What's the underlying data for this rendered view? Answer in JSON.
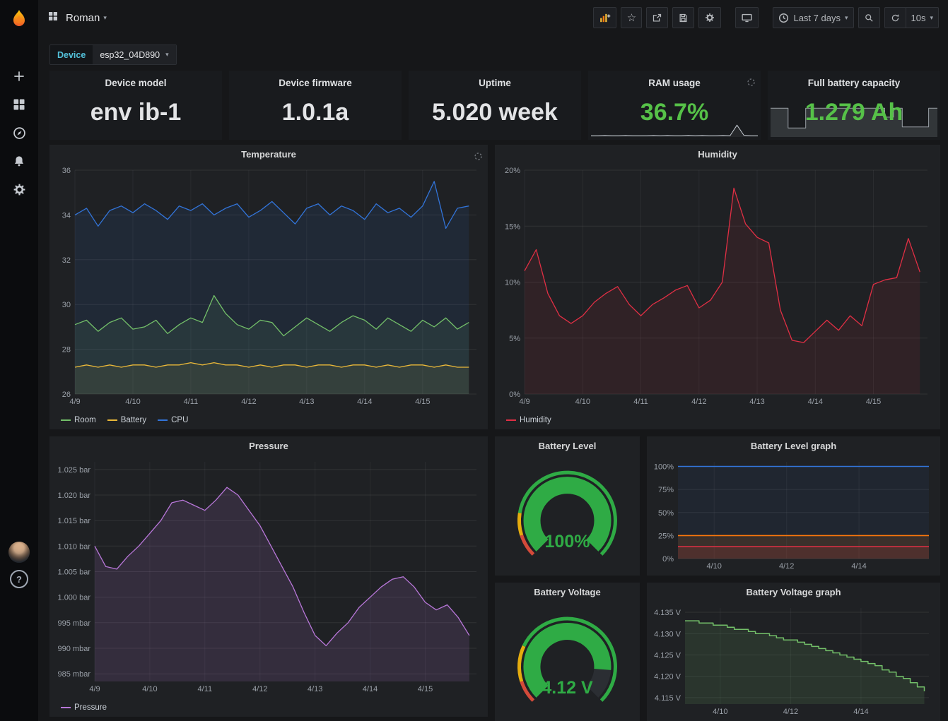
{
  "icons": {
    "caret_down": "▾",
    "star": "☆",
    "help": "?"
  },
  "navbar": {
    "dashboard_title": "Roman",
    "time_range_label": "Last 7 days",
    "refresh_label": "10s"
  },
  "device_bar": {
    "label": "Device",
    "value": "esp32_04D890"
  },
  "stats": [
    {
      "title": "Device model",
      "value": "env ib-1",
      "color": "#e3e4e6"
    },
    {
      "title": "Device firmware",
      "value": "1.0.1a",
      "color": "#e3e4e6"
    },
    {
      "title": "Uptime",
      "value": "5.020 week",
      "color": "#e3e4e6"
    },
    {
      "title": "RAM usage",
      "value": "36.7%",
      "color": "#56c148"
    },
    {
      "title": "Full battery capacity",
      "value": "1.279 Ah",
      "color": "#56c148"
    }
  ],
  "gauges": [
    {
      "id": "battery_level",
      "title": "Battery Level",
      "display": "100%",
      "percent": 100,
      "color": "#2fab45",
      "thresholds": [
        {
          "from": 0,
          "to": 0.1,
          "color": "#d44a3a"
        },
        {
          "from": 0.1,
          "to": 0.2,
          "color": "#e5ac0e"
        },
        {
          "from": 0.2,
          "to": 1,
          "color": "#2fab45"
        }
      ]
    },
    {
      "id": "battery_voltage",
      "title": "Battery Voltage",
      "display": "4.12 V",
      "percent": 85,
      "color": "#2fab45",
      "thresholds": [
        {
          "from": 0,
          "to": 0.1,
          "color": "#d44a3a"
        },
        {
          "from": 0.1,
          "to": 0.26,
          "color": "#e5ac0e"
        },
        {
          "from": 0.26,
          "to": 1,
          "color": "#2fab45"
        }
      ]
    }
  ],
  "chart_data": [
    {
      "id": "temperature",
      "type": "line",
      "title": "Temperature",
      "legend": true,
      "xmin": 9,
      "xmax": 15.93,
      "ymin": 26,
      "ymax": 36,
      "x": [
        9,
        9.2,
        9.4,
        9.6,
        9.8,
        10,
        10.2,
        10.4,
        10.6,
        10.8,
        11,
        11.2,
        11.4,
        11.6,
        11.8,
        12,
        12.2,
        12.4,
        12.6,
        12.8,
        13,
        13.2,
        13.4,
        13.6,
        13.8,
        14,
        14.2,
        14.4,
        14.6,
        14.8,
        15,
        15.2,
        15.4,
        15.6,
        15.8
      ],
      "xticks": [
        {
          "v": 9,
          "label": "4/9"
        },
        {
          "v": 10,
          "label": "4/10"
        },
        {
          "v": 11,
          "label": "4/11"
        },
        {
          "v": 12,
          "label": "4/12"
        },
        {
          "v": 13,
          "label": "4/13"
        },
        {
          "v": 14,
          "label": "4/14"
        },
        {
          "v": 15,
          "label": "4/15"
        }
      ],
      "yticks": [
        {
          "v": 26,
          "label": "26"
        },
        {
          "v": 28,
          "label": "28"
        },
        {
          "v": 30,
          "label": "30"
        },
        {
          "v": 32,
          "label": "32"
        },
        {
          "v": 34,
          "label": "34"
        },
        {
          "v": 36,
          "label": "36"
        }
      ],
      "series": [
        {
          "name": "Room",
          "color": "#73bf69",
          "fill": "rgba(115,191,105,0.10)",
          "values": [
            29.1,
            29.3,
            28.8,
            29.2,
            29.4,
            28.9,
            29.0,
            29.3,
            28.7,
            29.1,
            29.4,
            29.2,
            30.4,
            29.6,
            29.1,
            28.9,
            29.3,
            29.2,
            28.6,
            29.0,
            29.4,
            29.1,
            28.8,
            29.2,
            29.5,
            29.3,
            28.9,
            29.4,
            29.1,
            28.8,
            29.3,
            29.0,
            29.4,
            28.9,
            29.2
          ]
        },
        {
          "name": "Battery",
          "color": "#eab839",
          "fill": "rgba(234,184,57,0.08)",
          "values": [
            27.2,
            27.3,
            27.2,
            27.3,
            27.2,
            27.3,
            27.3,
            27.2,
            27.3,
            27.3,
            27.4,
            27.3,
            27.4,
            27.3,
            27.3,
            27.2,
            27.3,
            27.2,
            27.3,
            27.3,
            27.2,
            27.3,
            27.3,
            27.2,
            27.3,
            27.3,
            27.2,
            27.3,
            27.2,
            27.3,
            27.3,
            27.2,
            27.3,
            27.2,
            27.2
          ]
        },
        {
          "name": "CPU",
          "color": "#3274d9",
          "fill": "rgba(50,116,217,0.10)",
          "values": [
            34.0,
            34.3,
            33.5,
            34.2,
            34.4,
            34.1,
            34.5,
            34.2,
            33.8,
            34.4,
            34.2,
            34.5,
            34.0,
            34.3,
            34.5,
            33.9,
            34.2,
            34.6,
            34.1,
            33.6,
            34.3,
            34.5,
            34.0,
            34.4,
            34.2,
            33.8,
            34.5,
            34.1,
            34.3,
            33.9,
            34.4,
            35.5,
            33.4,
            34.3,
            34.4
          ]
        }
      ]
    },
    {
      "id": "humidity",
      "type": "line",
      "title": "Humidity",
      "legend": true,
      "xmin": 9,
      "xmax": 15.93,
      "ymin": 0,
      "ymax": 20,
      "x": [
        9,
        9.2,
        9.4,
        9.6,
        9.8,
        10,
        10.2,
        10.4,
        10.6,
        10.8,
        11,
        11.2,
        11.4,
        11.6,
        11.8,
        12,
        12.2,
        12.4,
        12.6,
        12.8,
        13,
        13.2,
        13.4,
        13.6,
        13.8,
        14,
        14.2,
        14.4,
        14.6,
        14.8,
        15,
        15.2,
        15.4,
        15.6,
        15.8
      ],
      "xticks": [
        {
          "v": 9,
          "label": "4/9"
        },
        {
          "v": 10,
          "label": "4/10"
        },
        {
          "v": 11,
          "label": "4/11"
        },
        {
          "v": 12,
          "label": "4/12"
        },
        {
          "v": 13,
          "label": "4/13"
        },
        {
          "v": 14,
          "label": "4/14"
        },
        {
          "v": 15,
          "label": "4/15"
        }
      ],
      "yticks": [
        {
          "v": 0,
          "label": "0%"
        },
        {
          "v": 5,
          "label": "5%"
        },
        {
          "v": 10,
          "label": "10%"
        },
        {
          "v": 15,
          "label": "15%"
        },
        {
          "v": 20,
          "label": "20%"
        }
      ],
      "series": [
        {
          "name": "Humidity",
          "color": "#e02f44",
          "fill": "rgba(224,47,68,0.09)",
          "values": [
            11.0,
            12.9,
            9.0,
            7.0,
            6.3,
            7.0,
            8.2,
            9.0,
            9.6,
            8.0,
            7.0,
            8.0,
            8.6,
            9.3,
            9.7,
            7.7,
            8.4,
            10.0,
            18.4,
            15.2,
            14.0,
            13.5,
            7.5,
            4.8,
            4.6,
            5.6,
            6.6,
            5.7,
            7.0,
            6.1,
            9.8,
            10.2,
            10.4,
            13.9,
            10.9
          ]
        }
      ]
    },
    {
      "id": "pressure",
      "type": "line",
      "title": "Pressure",
      "legend": true,
      "xmin": 9,
      "xmax": 15.93,
      "ymin": 0.9835,
      "ymax": 1.0265,
      "x": [
        9,
        9.2,
        9.4,
        9.6,
        9.8,
        10,
        10.2,
        10.4,
        10.6,
        10.8,
        11,
        11.2,
        11.4,
        11.6,
        11.8,
        12,
        12.2,
        12.4,
        12.6,
        12.8,
        13,
        13.2,
        13.4,
        13.6,
        13.8,
        14,
        14.2,
        14.4,
        14.6,
        14.8,
        15,
        15.2,
        15.4,
        15.6,
        15.8
      ],
      "xticks": [
        {
          "v": 9,
          "label": "4/9"
        },
        {
          "v": 10,
          "label": "4/10"
        },
        {
          "v": 11,
          "label": "4/11"
        },
        {
          "v": 12,
          "label": "4/12"
        },
        {
          "v": 13,
          "label": "4/13"
        },
        {
          "v": 14,
          "label": "4/14"
        },
        {
          "v": 15,
          "label": "4/15"
        }
      ],
      "yticks": [
        {
          "v": 0.985,
          "label": "985 mbar"
        },
        {
          "v": 0.99,
          "label": "990 mbar"
        },
        {
          "v": 0.995,
          "label": "995 mbar"
        },
        {
          "v": 1.0,
          "label": "1.000 bar"
        },
        {
          "v": 1.005,
          "label": "1.005 bar"
        },
        {
          "v": 1.01,
          "label": "1.010 bar"
        },
        {
          "v": 1.015,
          "label": "1.015 bar"
        },
        {
          "v": 1.02,
          "label": "1.020 bar"
        },
        {
          "v": 1.025,
          "label": "1.025 bar"
        }
      ],
      "series": [
        {
          "name": "Pressure",
          "color": "#b877d9",
          "fill": "rgba(184,119,217,0.14)",
          "values": [
            1.01,
            1.006,
            1.0055,
            1.008,
            1.01,
            1.0125,
            1.015,
            1.0185,
            1.019,
            1.018,
            1.017,
            1.019,
            1.0215,
            1.02,
            1.017,
            1.014,
            1.01,
            1.006,
            1.002,
            0.997,
            0.9925,
            0.9905,
            0.993,
            0.995,
            0.998,
            1.0,
            1.002,
            1.0035,
            1.004,
            1.002,
            0.999,
            0.9975,
            0.9985,
            0.996,
            0.9925
          ]
        }
      ]
    },
    {
      "id": "battery_level_graph",
      "type": "line",
      "title": "Battery Level graph",
      "legend": false,
      "xmin": 9,
      "xmax": 15.93,
      "ymin": 0,
      "ymax": 105,
      "xticks": [
        {
          "v": 10,
          "label": "4/10"
        },
        {
          "v": 12,
          "label": "4/12"
        },
        {
          "v": 14,
          "label": "4/14"
        }
      ],
      "yticks": [
        {
          "v": 0,
          "label": "0%"
        },
        {
          "v": 25,
          "label": "25%"
        },
        {
          "v": 50,
          "label": "50%"
        },
        {
          "v": 75,
          "label": "75%"
        },
        {
          "v": 100,
          "label": "100%"
        }
      ],
      "series": [
        {
          "name": "",
          "color": "#3274d9",
          "fill": "rgba(50,116,217,0.07)",
          "x": [
            9,
            15.93
          ],
          "values": [
            100,
            100
          ],
          "width": 1.6
        },
        {
          "name": "",
          "color": "#ff780a",
          "fill": "rgba(255,120,10,0.12)",
          "x": [
            9,
            15.93
          ],
          "values": [
            25,
            25
          ],
          "width": 1.6
        },
        {
          "name": "",
          "color": "#e02f44",
          "fill": "rgba(224,47,68,0.12)",
          "x": [
            9,
            15.93
          ],
          "values": [
            13,
            13
          ],
          "width": 1.6
        }
      ]
    },
    {
      "id": "battery_voltage_graph",
      "type": "line",
      "title": "Battery Voltage graph",
      "legend": false,
      "xmin": 9,
      "xmax": 15.93,
      "ymin": 4.1135,
      "ymax": 4.136,
      "x": [
        9,
        9.2,
        9.4,
        9.6,
        9.8,
        10,
        10.2,
        10.4,
        10.6,
        10.8,
        11,
        11.2,
        11.4,
        11.6,
        11.8,
        12,
        12.2,
        12.4,
        12.6,
        12.8,
        13,
        13.2,
        13.4,
        13.6,
        13.8,
        14,
        14.2,
        14.4,
        14.6,
        14.8,
        15,
        15.2,
        15.4,
        15.6,
        15.8
      ],
      "xticks": [
        {
          "v": 10,
          "label": "4/10"
        },
        {
          "v": 12,
          "label": "4/12"
        },
        {
          "v": 14,
          "label": "4/14"
        }
      ],
      "yticks": [
        {
          "v": 4.115,
          "label": "4.115 V"
        },
        {
          "v": 4.12,
          "label": "4.120 V"
        },
        {
          "v": 4.125,
          "label": "4.125 V"
        },
        {
          "v": 4.13,
          "label": "4.130 V"
        },
        {
          "v": 4.135,
          "label": "4.135 V"
        }
      ],
      "series": [
        {
          "name": "",
          "color": "#73bf69",
          "fill": "rgba(115,191,105,0.13)",
          "step": true,
          "width": 1.5,
          "values": [
            4.133,
            4.133,
            4.1325,
            4.1325,
            4.132,
            4.132,
            4.1315,
            4.131,
            4.131,
            4.1305,
            4.13,
            4.13,
            4.1295,
            4.129,
            4.1285,
            4.1285,
            4.128,
            4.1275,
            4.127,
            4.1265,
            4.126,
            4.1255,
            4.125,
            4.1245,
            4.124,
            4.1235,
            4.123,
            4.1225,
            4.1215,
            4.121,
            4.12,
            4.1195,
            4.1185,
            4.1175,
            4.1165
          ]
        }
      ]
    },
    {
      "id": "ram_spark",
      "type": "sparkline",
      "ymin": 0,
      "ymax": 100,
      "series": [
        {
          "name": "",
          "color": "#c7cdd4",
          "fill": "rgba(200,205,210,0.07)",
          "width": 1,
          "values": [
            8,
            8,
            9,
            8,
            8,
            9,
            8,
            8,
            8,
            9,
            8,
            9,
            8,
            8,
            10,
            8,
            9,
            8,
            8,
            9,
            8,
            70,
            10,
            8,
            8
          ]
        }
      ]
    },
    {
      "id": "capacity_spark",
      "type": "sparkline",
      "ymin": 0,
      "ymax": 100,
      "series": [
        {
          "name": "",
          "color": "#9aa0a6",
          "fill": "rgba(165,175,185,0.18)",
          "step": true,
          "width": 1,
          "values": [
            80,
            80,
            25,
            25,
            80,
            80,
            80,
            80,
            80,
            80,
            80,
            80,
            80,
            55,
            80,
            28,
            28,
            28,
            80,
            80
          ]
        }
      ]
    }
  ]
}
